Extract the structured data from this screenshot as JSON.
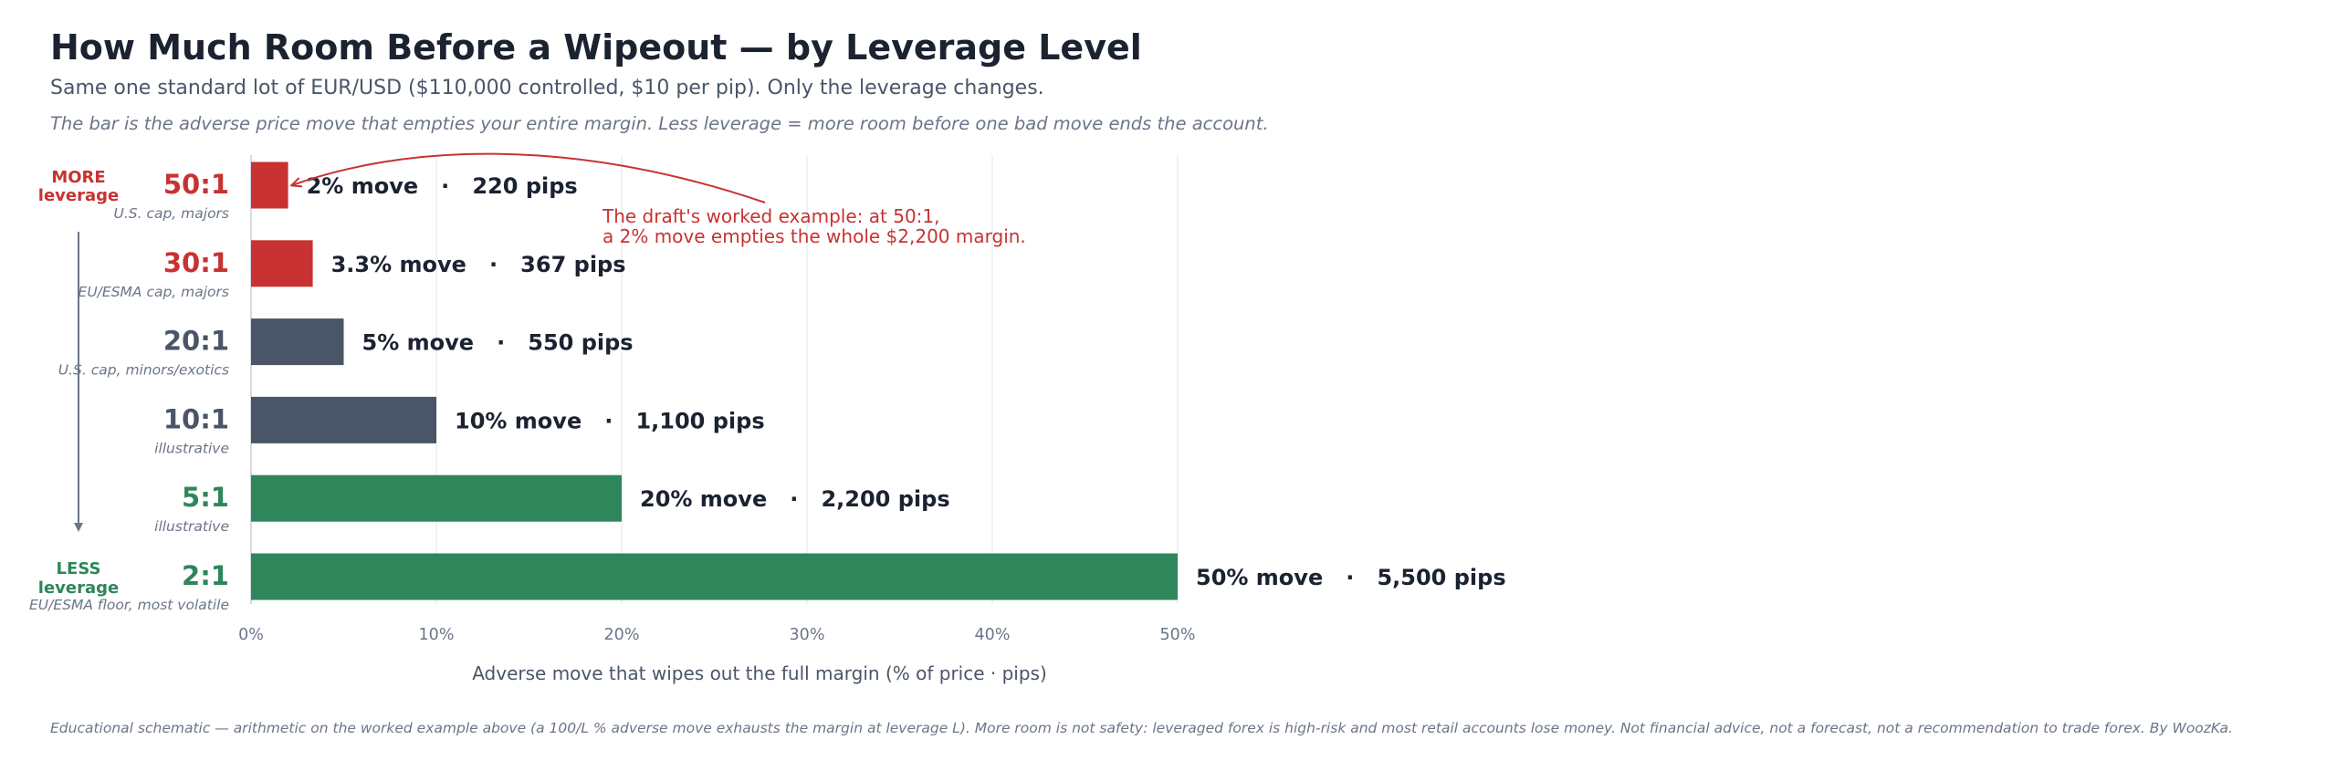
{
  "header": {
    "title": "How Much Room Before a Wipeout — by Leverage Level",
    "subtitle": "Same one standard lot of EUR/USD ($110,000 controlled, $10 per pip). Only the leverage changes.",
    "tagline": "The bar is the adverse price move that empties your entire margin. Less leverage = more room before one bad move ends the account."
  },
  "footer": {
    "note": "Educational schematic — arithmetic on the worked example above (a 100/L % adverse move exhausts the margin at leverage L). More room is not safety: leveraged forex is high-risk and most retail accounts lose money. Not financial advice, not a forecast, not a recommendation to trade forex. By WoozKa."
  },
  "side_labels": {
    "top_line1": "MORE",
    "top_line2": "leverage",
    "bottom_line1": "LESS",
    "bottom_line2": "leverage"
  },
  "chart_data": {
    "type": "bar",
    "orientation": "horizontal",
    "xlabel": "Adverse move that wipes out the full margin  (% of price  ·  pips)",
    "xlim": [
      0,
      50
    ],
    "xticks": [
      0,
      10,
      20,
      30,
      40,
      50
    ],
    "xtick_labels": [
      "0%",
      "10%",
      "20%",
      "30%",
      "40%",
      "50%"
    ],
    "grid": "vertical",
    "bars": [
      {
        "label": "50:1",
        "sublabel": "U.S. cap, majors",
        "value": 2,
        "pips": 220,
        "value_label": "2% move   ·   220 pips",
        "color": "#c83232"
      },
      {
        "label": "30:1",
        "sublabel": "EU/ESMA cap, majors",
        "value": 3.33,
        "pips": 367,
        "value_label": "3.3% move   ·   367 pips",
        "color": "#c83232"
      },
      {
        "label": "20:1",
        "sublabel": "U.S. cap, minors/exotics",
        "value": 5,
        "pips": 550,
        "value_label": "5% move   ·   550 pips",
        "color": "#4a5568"
      },
      {
        "label": "10:1",
        "sublabel": "illustrative",
        "value": 10,
        "pips": 1100,
        "value_label": "10% move   ·   1,100 pips",
        "color": "#4a5568"
      },
      {
        "label": "5:1",
        "sublabel": "illustrative",
        "value": 20,
        "pips": 2200,
        "value_label": "20% move   ·   2,200 pips",
        "color": "#2e865a"
      },
      {
        "label": "2:1",
        "sublabel": "EU/ESMA floor, most volatile",
        "value": 50,
        "pips": 5500,
        "value_label": "50% move   ·   5,500 pips",
        "color": "#2e865a"
      }
    ],
    "annotation": {
      "line1": "The draft's worked example: at 50:1,",
      "line2": "a 2% move empties the whole $2,200 margin.",
      "color": "#c83232",
      "target_bar": 0
    }
  }
}
